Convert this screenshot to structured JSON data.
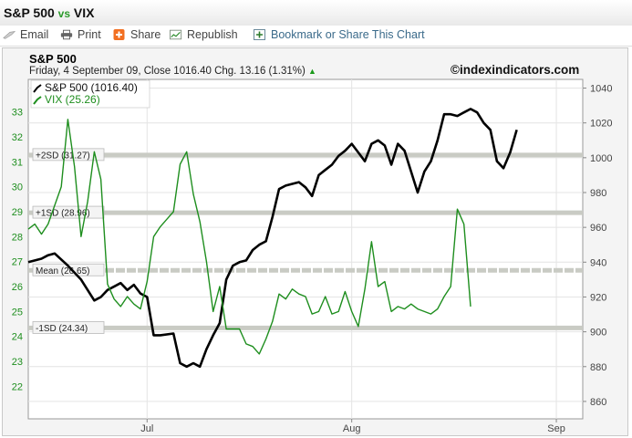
{
  "header": {
    "title_a": "S&P 500",
    "vs": "vs",
    "title_b": "VIX"
  },
  "toolbar": {
    "email": "Email",
    "print": "Print",
    "share": "Share",
    "republish": "Republish",
    "bookmark": "Bookmark or Share This Chart"
  },
  "icons": [
    "email-icon",
    "print-icon",
    "share-icon",
    "republish-icon",
    "bookmark-icon",
    "up-arrow-icon"
  ],
  "colors": {
    "spx": "#000000",
    "vix": "#1e8e1e",
    "bands": "#c9cbc4",
    "plot_bg": "#ffffff",
    "frame_bg": "#f4f4f4"
  },
  "chart_data": {
    "type": "line",
    "title": "S&P 500",
    "subtitle_date": "Friday, 4 September 09, Close 1016.40 Chg. 13.16 (1.31%)",
    "brand": "©indexindicators.com",
    "x_labels": [
      "Jul",
      "Aug",
      "Sep"
    ],
    "x_label_days": [
      18,
      49,
      80
    ],
    "x_range": [
      0,
      84
    ],
    "y_right": {
      "label": "S&P 500",
      "range": [
        850,
        1045
      ],
      "ticks": [
        860,
        880,
        900,
        920,
        940,
        960,
        980,
        1000,
        1020,
        1040
      ]
    },
    "y_left": {
      "label": "VIX",
      "range": [
        20.7,
        34.3
      ],
      "ticks": [
        22,
        23,
        24,
        25,
        26,
        27,
        28,
        29,
        30,
        31,
        32,
        33
      ]
    },
    "grid": true,
    "legend_position": "top-left",
    "legend": [
      "S&P 500 (1016.40)",
      "VIX (25.26)"
    ],
    "levels": [
      {
        "label": "+2SD (31.27)",
        "value": 31.27
      },
      {
        "label": "+1SD (28.96)",
        "value": 28.96
      },
      {
        "label": "Mean (26.65)",
        "value": 26.65
      },
      {
        "label": "-1SD (24.34)",
        "value": 24.34
      }
    ],
    "series": [
      {
        "name": "S&P 500 (1016.40)",
        "axis": "right",
        "points": [
          [
            0,
            940
          ],
          [
            2,
            942
          ],
          [
            3,
            944
          ],
          [
            4,
            945
          ],
          [
            6,
            938
          ],
          [
            8,
            930
          ],
          [
            9,
            924
          ],
          [
            10,
            918
          ],
          [
            11,
            920
          ],
          [
            12,
            924
          ],
          [
            14,
            928
          ],
          [
            15,
            924
          ],
          [
            16,
            927
          ],
          [
            17,
            922
          ],
          [
            18,
            920
          ],
          [
            19,
            898
          ],
          [
            20,
            898
          ],
          [
            22,
            899
          ],
          [
            23,
            882
          ],
          [
            24,
            880
          ],
          [
            25,
            882
          ],
          [
            26,
            880
          ],
          [
            27,
            890
          ],
          [
            28,
            898
          ],
          [
            29,
            905
          ],
          [
            30,
            930
          ],
          [
            31,
            938
          ],
          [
            32,
            940
          ],
          [
            33,
            941
          ],
          [
            34,
            947
          ],
          [
            35,
            950
          ],
          [
            36,
            952
          ],
          [
            37,
            966
          ],
          [
            38,
            982
          ],
          [
            39,
            984
          ],
          [
            40,
            985
          ],
          [
            41,
            986
          ],
          [
            42,
            983
          ],
          [
            43,
            978
          ],
          [
            44,
            990
          ],
          [
            45,
            993
          ],
          [
            46,
            996
          ],
          [
            47,
            1001
          ],
          [
            48,
            1004
          ],
          [
            49,
            1008
          ],
          [
            50,
            1003
          ],
          [
            51,
            998
          ],
          [
            52,
            1008
          ],
          [
            53,
            1010
          ],
          [
            54,
            1007
          ],
          [
            55,
            996
          ],
          [
            56,
            1008
          ],
          [
            57,
            1004
          ],
          [
            58,
            992
          ],
          [
            59,
            980
          ],
          [
            60,
            992
          ],
          [
            61,
            998
          ],
          [
            62,
            1010
          ],
          [
            63,
            1025
          ],
          [
            64,
            1025
          ],
          [
            65,
            1024
          ],
          [
            66,
            1026
          ],
          [
            67,
            1028
          ],
          [
            68,
            1026
          ],
          [
            69,
            1020
          ],
          [
            70,
            1016
          ],
          [
            71,
            998
          ],
          [
            72,
            994
          ],
          [
            73,
            1003
          ],
          [
            74,
            1016
          ]
        ]
      },
      {
        "name": "VIX (25.26)",
        "axis": "left",
        "points": [
          [
            0,
            28.3
          ],
          [
            1,
            28.5
          ],
          [
            2,
            28.1
          ],
          [
            3,
            28.5
          ],
          [
            5,
            30.0
          ],
          [
            6,
            32.7
          ],
          [
            7,
            30.8
          ],
          [
            8,
            28.0
          ],
          [
            9,
            29.4
          ],
          [
            10,
            31.4
          ],
          [
            11,
            30.3
          ],
          [
            12,
            26.1
          ],
          [
            13,
            25.5
          ],
          [
            14,
            25.2
          ],
          [
            15,
            25.6
          ],
          [
            16,
            25.3
          ],
          [
            17,
            25.1
          ],
          [
            18,
            26.2
          ],
          [
            19,
            28.0
          ],
          [
            20,
            28.4
          ],
          [
            21,
            28.7
          ],
          [
            22,
            29.0
          ],
          [
            23,
            30.9
          ],
          [
            24,
            31.4
          ],
          [
            25,
            29.7
          ],
          [
            26,
            28.6
          ],
          [
            27,
            27.0
          ],
          [
            28,
            25.0
          ],
          [
            29,
            26.0
          ],
          [
            30,
            24.3
          ],
          [
            31,
            24.3
          ],
          [
            32,
            24.3
          ],
          [
            33,
            23.7
          ],
          [
            34,
            23.6
          ],
          [
            35,
            23.3
          ],
          [
            36,
            23.9
          ],
          [
            37,
            24.6
          ],
          [
            38,
            25.7
          ],
          [
            39,
            25.5
          ],
          [
            40,
            25.9
          ],
          [
            41,
            25.7
          ],
          [
            42,
            25.6
          ],
          [
            43,
            24.9
          ],
          [
            44,
            25.0
          ],
          [
            45,
            25.6
          ],
          [
            46,
            24.9
          ],
          [
            47,
            25.0
          ],
          [
            48,
            25.8
          ],
          [
            49,
            25.0
          ],
          [
            50,
            24.4
          ],
          [
            51,
            25.9
          ],
          [
            52,
            27.8
          ],
          [
            53,
            26.0
          ],
          [
            54,
            26.2
          ],
          [
            55,
            25.0
          ],
          [
            56,
            25.2
          ],
          [
            57,
            25.1
          ],
          [
            58,
            25.3
          ],
          [
            59,
            25.1
          ],
          [
            60,
            25.0
          ],
          [
            61,
            24.9
          ],
          [
            62,
            25.1
          ],
          [
            63,
            25.6
          ],
          [
            64,
            26.0
          ],
          [
            65,
            29.1
          ],
          [
            66,
            28.5
          ],
          [
            67,
            25.2
          ]
        ]
      }
    ]
  }
}
